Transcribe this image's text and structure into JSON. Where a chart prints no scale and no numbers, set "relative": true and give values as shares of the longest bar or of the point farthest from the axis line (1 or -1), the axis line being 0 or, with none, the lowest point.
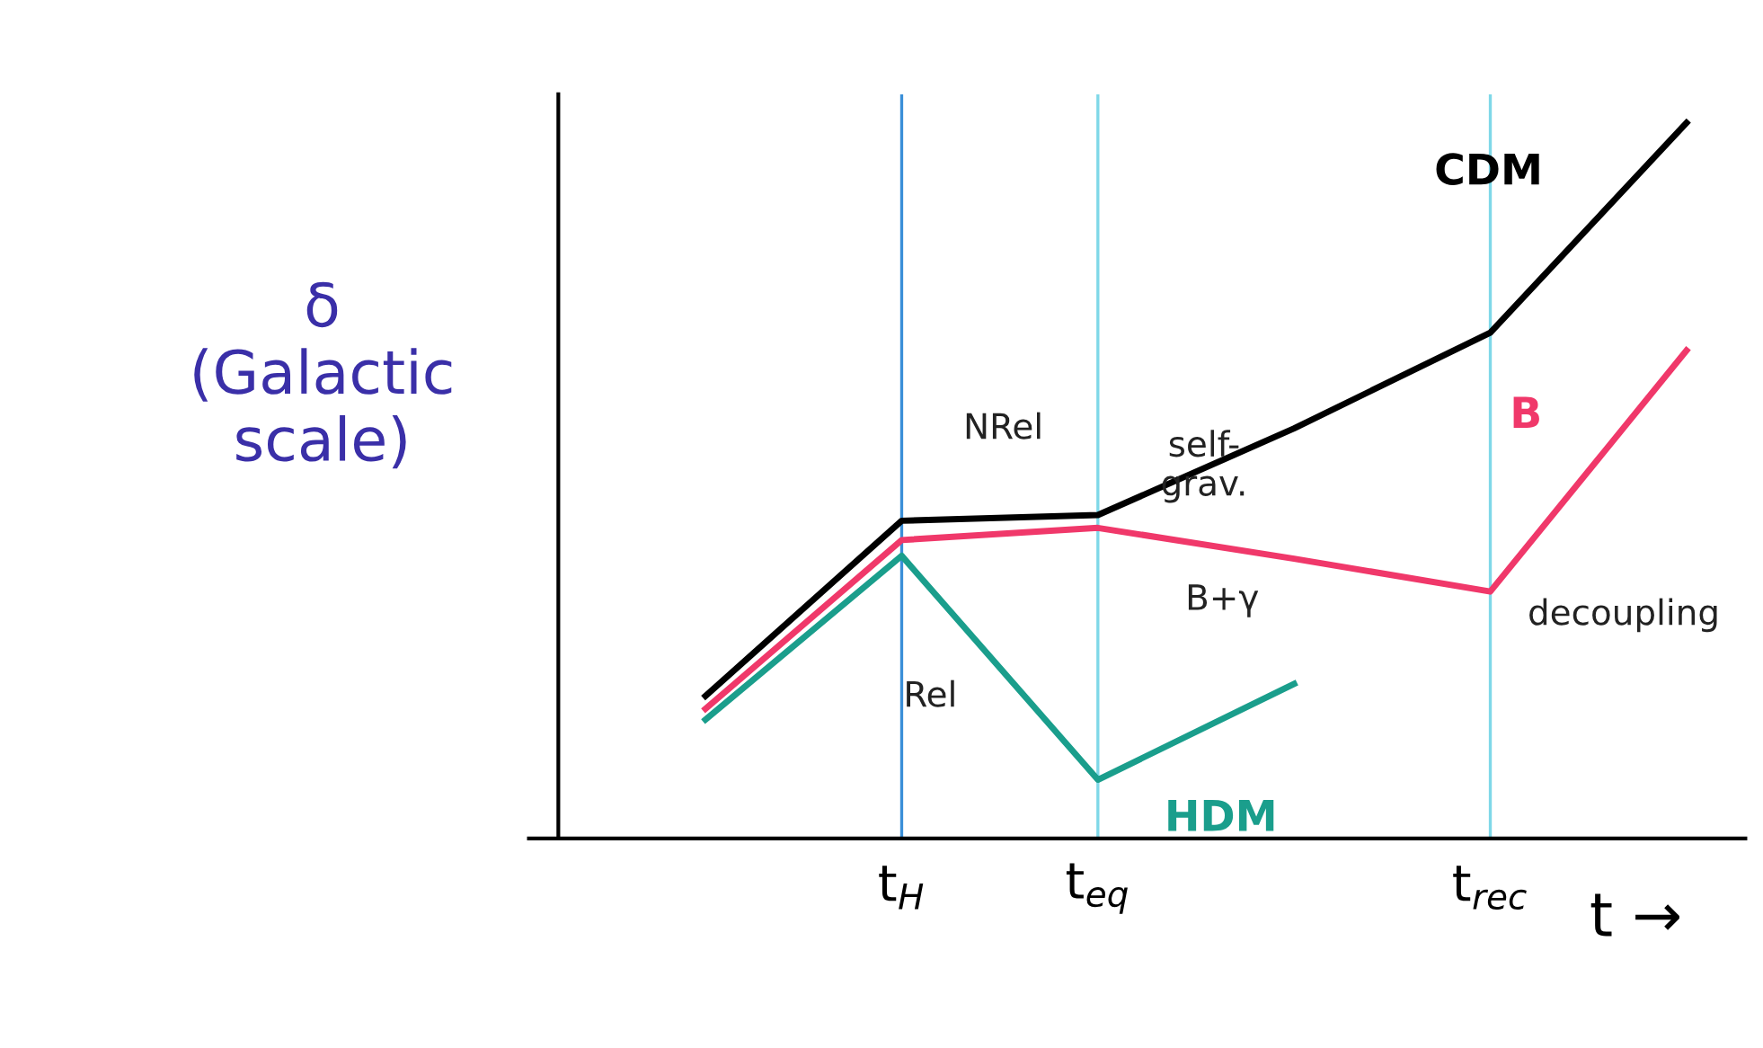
{
  "chart_data": {
    "type": "line",
    "relative": true,
    "ylabel": "δ\n(Galactic\nscale)",
    "xlabel": "t →",
    "categories": [
      null,
      "t$_{H}$",
      "t$_{eq}$",
      null,
      "t$_{rec}$",
      null
    ],
    "series": [
      {
        "name": "CDM",
        "color": "#000000",
        "values": [
          0.199,
          0.444,
          0.452,
          0.573,
          0.707,
          1.0
        ]
      },
      {
        "name": "B",
        "color": "#f0386a",
        "values": [
          0.181,
          0.417,
          0.434,
          0.391,
          0.345,
          0.682
        ]
      },
      {
        "name": "HDM",
        "color": "#1a9e8c",
        "values": [
          0.166,
          0.395,
          0.082,
          0.216,
          null,
          null
        ]
      }
    ],
    "ref_lines": [
      {
        "axis": "x",
        "value": "t$_{H}$",
        "color": "#3a8fd8"
      },
      {
        "axis": "x",
        "value": "t$_{eq}$",
        "color": "#7fd8e8"
      },
      {
        "axis": "x",
        "value": "t$_{rec}$",
        "color": "#7fd8e8"
      }
    ],
    "annotations": [
      "NRel",
      "self-\ngrav.",
      "B+γ",
      "decoupling",
      "Rel"
    ],
    "legend": false,
    "grid": false,
    "marker": "none",
    "line_style": "solid"
  }
}
